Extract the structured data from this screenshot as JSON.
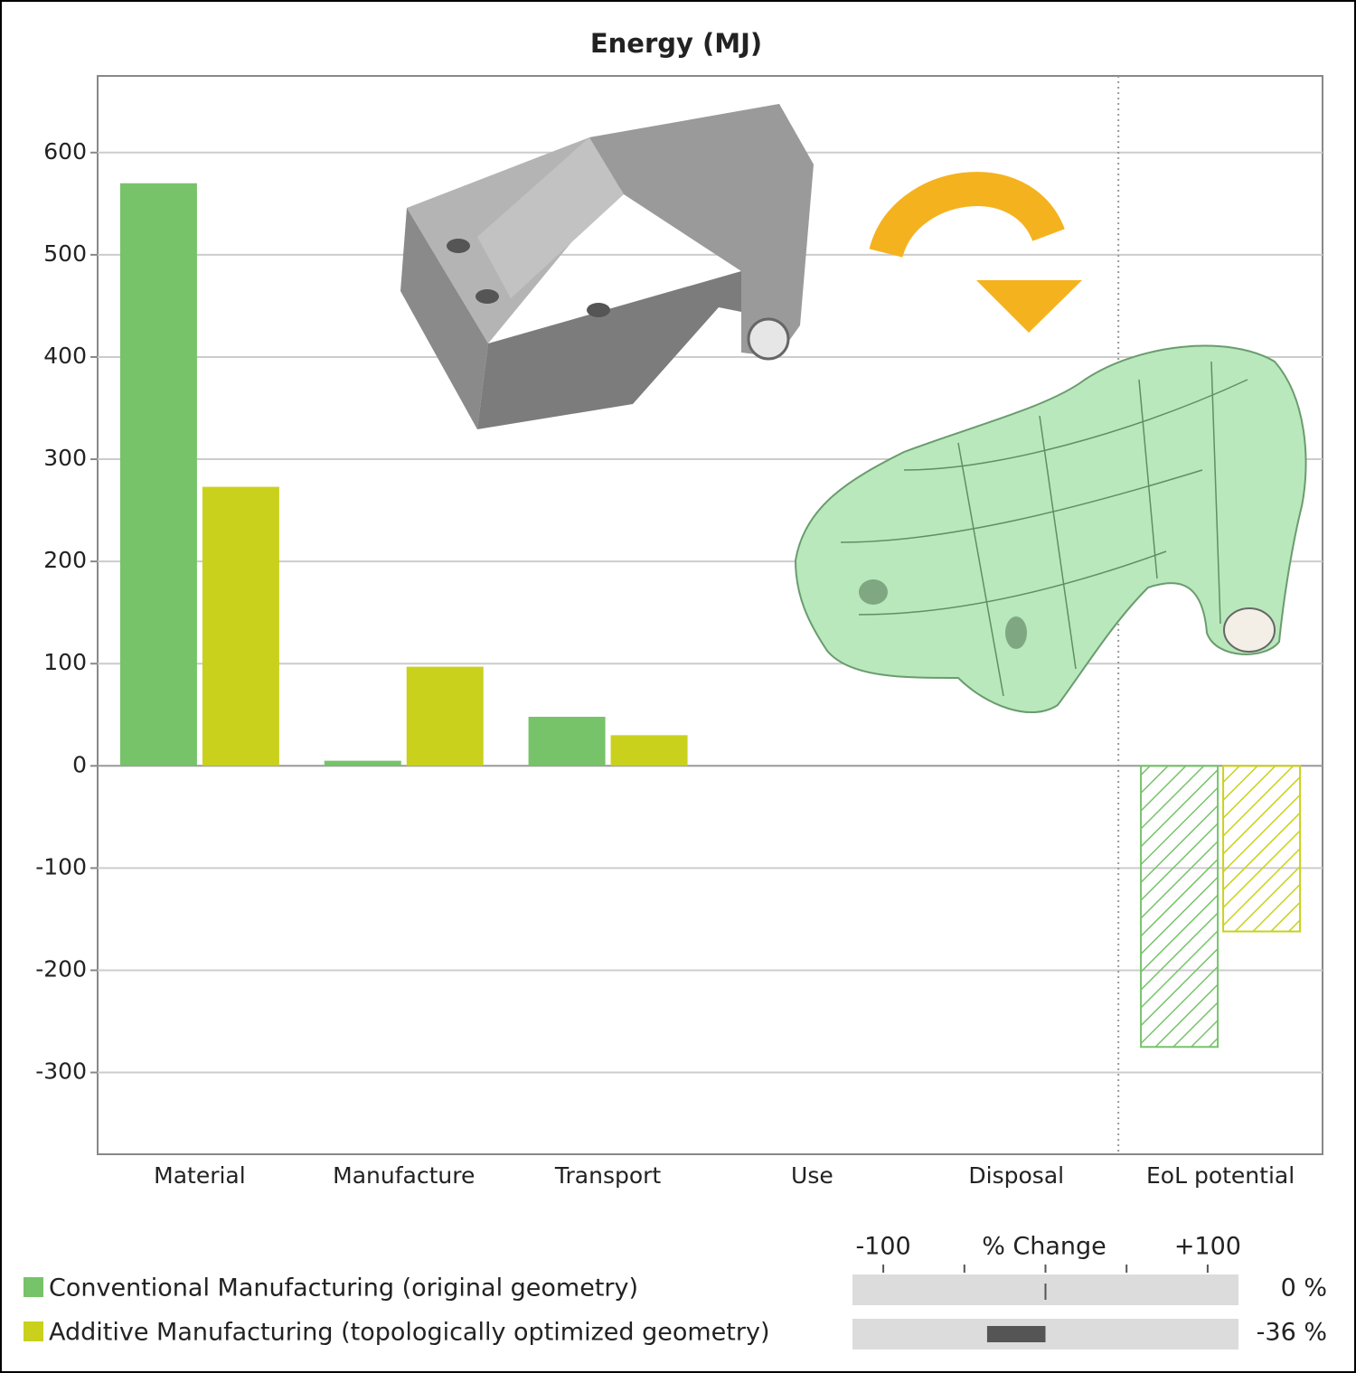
{
  "chart_data": [
    {
      "type": "bar",
      "title": "Energy (MJ)",
      "categories": [
        "Material",
        "Manufacture",
        "Transport",
        "Use",
        "Disposal",
        "EoL potential"
      ],
      "series": [
        {
          "name": "Conventional Manufacturing (original geometry)",
          "color": "#77c36a",
          "values": [
            570,
            5,
            48,
            null,
            null,
            -275
          ]
        },
        {
          "name": "Additive Manufacturing (topologically optimized geometry)",
          "color": "#c9d11d",
          "values": [
            273,
            97,
            30,
            null,
            null,
            -162
          ]
        }
      ],
      "hatched": [
        false,
        false,
        false,
        false,
        false,
        true
      ],
      "ylim": [
        -380,
        675
      ],
      "yticks": [
        -300,
        -200,
        -100,
        0,
        100,
        200,
        300,
        400,
        500,
        600
      ],
      "grid": true
    },
    {
      "type": "change",
      "title": "% Change",
      "values": [
        0,
        -36
      ],
      "value_labels": [
        "0 %",
        "-36 %"
      ],
      "color": "#555555",
      "xlim": [
        -119,
        119
      ],
      "xticks": [
        {
          "value": -100,
          "label": "-100"
        },
        {
          "value": -50
        },
        {
          "value": 0
        },
        {
          "value": 50
        },
        {
          "value": 100,
          "label": "+100"
        }
      ]
    }
  ]
}
